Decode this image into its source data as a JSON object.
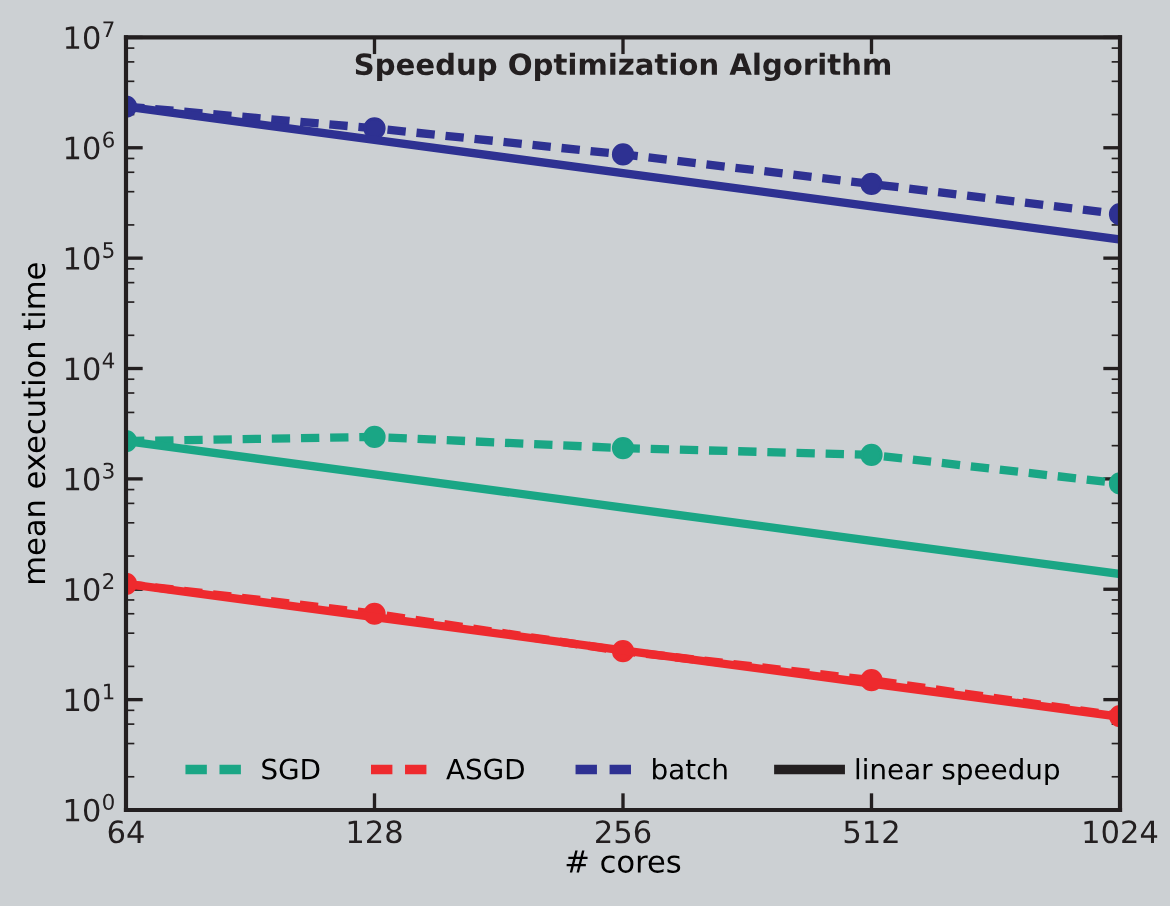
{
  "chart_data": {
    "type": "line",
    "title": "Speedup Optimization Algorithm",
    "xlabel": "# cores",
    "ylabel": "mean execution time",
    "x": [
      64,
      128,
      256,
      512,
      1024
    ],
    "log": "xy",
    "xlim": [
      64,
      1024
    ],
    "xticks": [
      64,
      128,
      256,
      512,
      1024
    ],
    "ylim": [
      1,
      10000000
    ],
    "yticks": [
      {
        "value": 1,
        "label": "10$^{0}$"
      },
      {
        "value": 10,
        "label": "10$^{1}$"
      },
      {
        "value": 100,
        "label": "10$^{2}$"
      },
      {
        "value": 1000,
        "label": "10$^{3}$"
      },
      {
        "value": 10000,
        "label": "10$^{4}$"
      },
      {
        "value": 100000,
        "label": "10$^{5}$"
      },
      {
        "value": 1000000,
        "label": "10$^{6}$"
      },
      {
        "value": 10000000,
        "label": "10$^{7}$"
      }
    ],
    "grid": false,
    "legend": "bottom",
    "series": [
      {
        "name": "SGD",
        "color": "#1aa685",
        "line_style": "dashed",
        "marker": "circle",
        "values": [
          2200,
          2400,
          1900,
          1650,
          910
        ]
      },
      {
        "name": "ASGD",
        "color": "#ee2a2e",
        "line_style": "dashed",
        "marker": "circle",
        "values": [
          112,
          60,
          27.5,
          15,
          7.1
        ]
      },
      {
        "name": "batch",
        "color": "#2e3192",
        "line_style": "dashed",
        "marker": "circle",
        "values": [
          2360000,
          1500000,
          870000,
          470000,
          250000
        ]
      },
      {
        "name": "linear speedup",
        "color": "#231f20",
        "line_style": "solid",
        "marker": "none",
        "values": [
          null,
          null,
          null,
          null,
          null
        ]
      },
      {
        "color": "#1aa685",
        "line_style": "solid",
        "marker": "none",
        "values": [
          2200,
          1100,
          550,
          275,
          137.5
        ]
      },
      {
        "color": "#ee2a2e",
        "line_style": "solid",
        "marker": "none",
        "values": [
          112,
          56,
          28,
          14,
          7
        ]
      },
      {
        "color": "#2e3192",
        "line_style": "solid",
        "marker": "none",
        "values": [
          2360000,
          1180000,
          590000,
          295000,
          147500
        ]
      }
    ]
  }
}
